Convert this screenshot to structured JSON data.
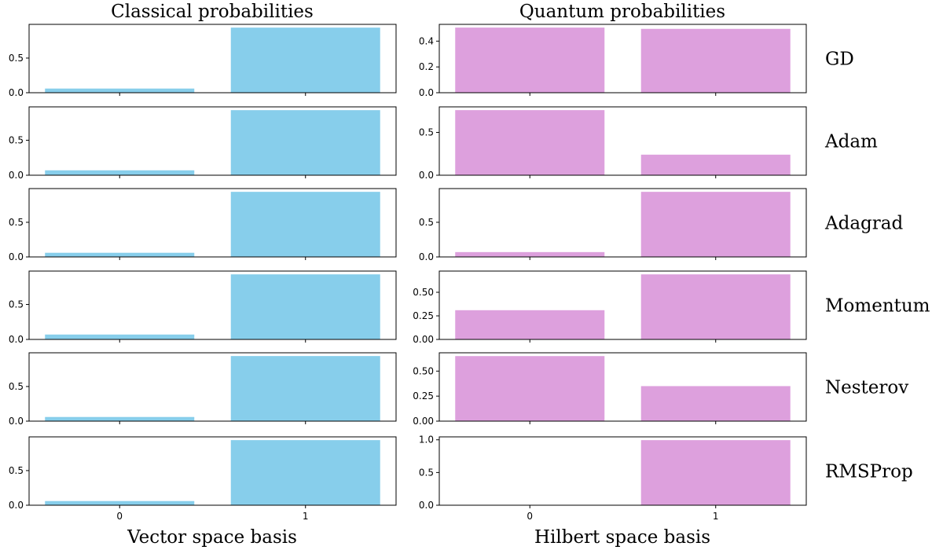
{
  "figure": {
    "col_titles": [
      "Classical probabilities",
      "Quantum probabilities"
    ],
    "x_labels": [
      "Vector space basis",
      "Hilbert space basis"
    ],
    "colors": {
      "classical": "#87ceeb",
      "quantum": "#dda0dd"
    }
  },
  "chart_data": [
    {
      "type": "bar",
      "panel": "classical",
      "row_label": "GD",
      "categories": [
        "0",
        "1"
      ],
      "values": [
        0.06,
        0.94
      ],
      "ylim": [
        0,
        0.987
      ],
      "yticks": [
        "0.0",
        "0.5"
      ],
      "ytick_values": [
        0,
        0.5
      ],
      "title": "Classical probabilities",
      "xlabel": "",
      "ylabel": ""
    },
    {
      "type": "bar",
      "panel": "quantum",
      "row_label": "GD",
      "categories": [
        "0",
        "1"
      ],
      "values": [
        0.505,
        0.495
      ],
      "ylim": [
        0,
        0.53
      ],
      "yticks": [
        "0.0",
        "0.2",
        "0.4"
      ],
      "ytick_values": [
        0,
        0.2,
        0.4
      ],
      "title": "Quantum probabilities",
      "xlabel": "",
      "ylabel": ""
    },
    {
      "type": "bar",
      "panel": "classical",
      "row_label": "Adam",
      "categories": [
        "0",
        "1"
      ],
      "values": [
        0.07,
        0.93
      ],
      "ylim": [
        0,
        0.977
      ],
      "yticks": [
        "0.0",
        "0.5"
      ],
      "ytick_values": [
        0,
        0.5
      ],
      "xlabel": "",
      "ylabel": ""
    },
    {
      "type": "bar",
      "panel": "quantum",
      "row_label": "Adam",
      "categories": [
        "0",
        "1"
      ],
      "values": [
        0.76,
        0.24
      ],
      "ylim": [
        0,
        0.798
      ],
      "yticks": [
        "0.0",
        "0.5"
      ],
      "ytick_values": [
        0,
        0.5
      ],
      "xlabel": "",
      "ylabel": ""
    },
    {
      "type": "bar",
      "panel": "classical",
      "row_label": "Adagrad",
      "categories": [
        "0",
        "1"
      ],
      "values": [
        0.06,
        0.94
      ],
      "ylim": [
        0,
        0.987
      ],
      "yticks": [
        "0.0",
        "0.5"
      ],
      "ytick_values": [
        0,
        0.5
      ],
      "xlabel": "",
      "ylabel": ""
    },
    {
      "type": "bar",
      "panel": "quantum",
      "row_label": "Adagrad",
      "categories": [
        "0",
        "1"
      ],
      "values": [
        0.07,
        0.94
      ],
      "ylim": [
        0,
        0.987
      ],
      "yticks": [
        "0.0",
        "0.5"
      ],
      "ytick_values": [
        0,
        0.5
      ],
      "xlabel": "",
      "ylabel": ""
    },
    {
      "type": "bar",
      "panel": "classical",
      "row_label": "Momentum",
      "categories": [
        "0",
        "1"
      ],
      "values": [
        0.07,
        0.93
      ],
      "ylim": [
        0,
        0.977
      ],
      "yticks": [
        "0.0",
        "0.5"
      ],
      "ytick_values": [
        0,
        0.5
      ],
      "xlabel": "",
      "ylabel": ""
    },
    {
      "type": "bar",
      "panel": "quantum",
      "row_label": "Momentum",
      "categories": [
        "0",
        "1"
      ],
      "values": [
        0.31,
        0.69
      ],
      "ylim": [
        0,
        0.725
      ],
      "yticks": [
        "0.00",
        "0.25",
        "0.50"
      ],
      "ytick_values": [
        0,
        0.25,
        0.5
      ],
      "xlabel": "",
      "ylabel": ""
    },
    {
      "type": "bar",
      "panel": "classical",
      "row_label": "Nesterov",
      "categories": [
        "0",
        "1"
      ],
      "values": [
        0.06,
        0.94
      ],
      "ylim": [
        0,
        0.987
      ],
      "yticks": [
        "0.0",
        "0.5"
      ],
      "ytick_values": [
        0,
        0.5
      ],
      "xlabel": "",
      "ylabel": ""
    },
    {
      "type": "bar",
      "panel": "quantum",
      "row_label": "Nesterov",
      "categories": [
        "0",
        "1"
      ],
      "values": [
        0.65,
        0.35
      ],
      "ylim": [
        0,
        0.683
      ],
      "yticks": [
        "0.00",
        "0.25",
        "0.50"
      ],
      "ytick_values": [
        0,
        0.25,
        0.5
      ],
      "xlabel": "",
      "ylabel": ""
    },
    {
      "type": "bar",
      "panel": "classical",
      "row_label": "RMSProp",
      "categories": [
        "0",
        "1"
      ],
      "values": [
        0.06,
        0.94
      ],
      "ylim": [
        0,
        0.987
      ],
      "yticks": [
        "0.0",
        "0.5"
      ],
      "ytick_values": [
        0,
        0.5
      ],
      "xlabel": "Vector space basis",
      "ylabel": ""
    },
    {
      "type": "bar",
      "panel": "quantum",
      "row_label": "RMSProp",
      "categories": [
        "0",
        "1"
      ],
      "values": [
        0.005,
        0.995
      ],
      "ylim": [
        0,
        1.045
      ],
      "yticks": [
        "0.0",
        "0.5",
        "1.0"
      ],
      "ytick_values": [
        0,
        0.5,
        1.0
      ],
      "xlabel": "Hilbert space basis",
      "ylabel": ""
    }
  ]
}
